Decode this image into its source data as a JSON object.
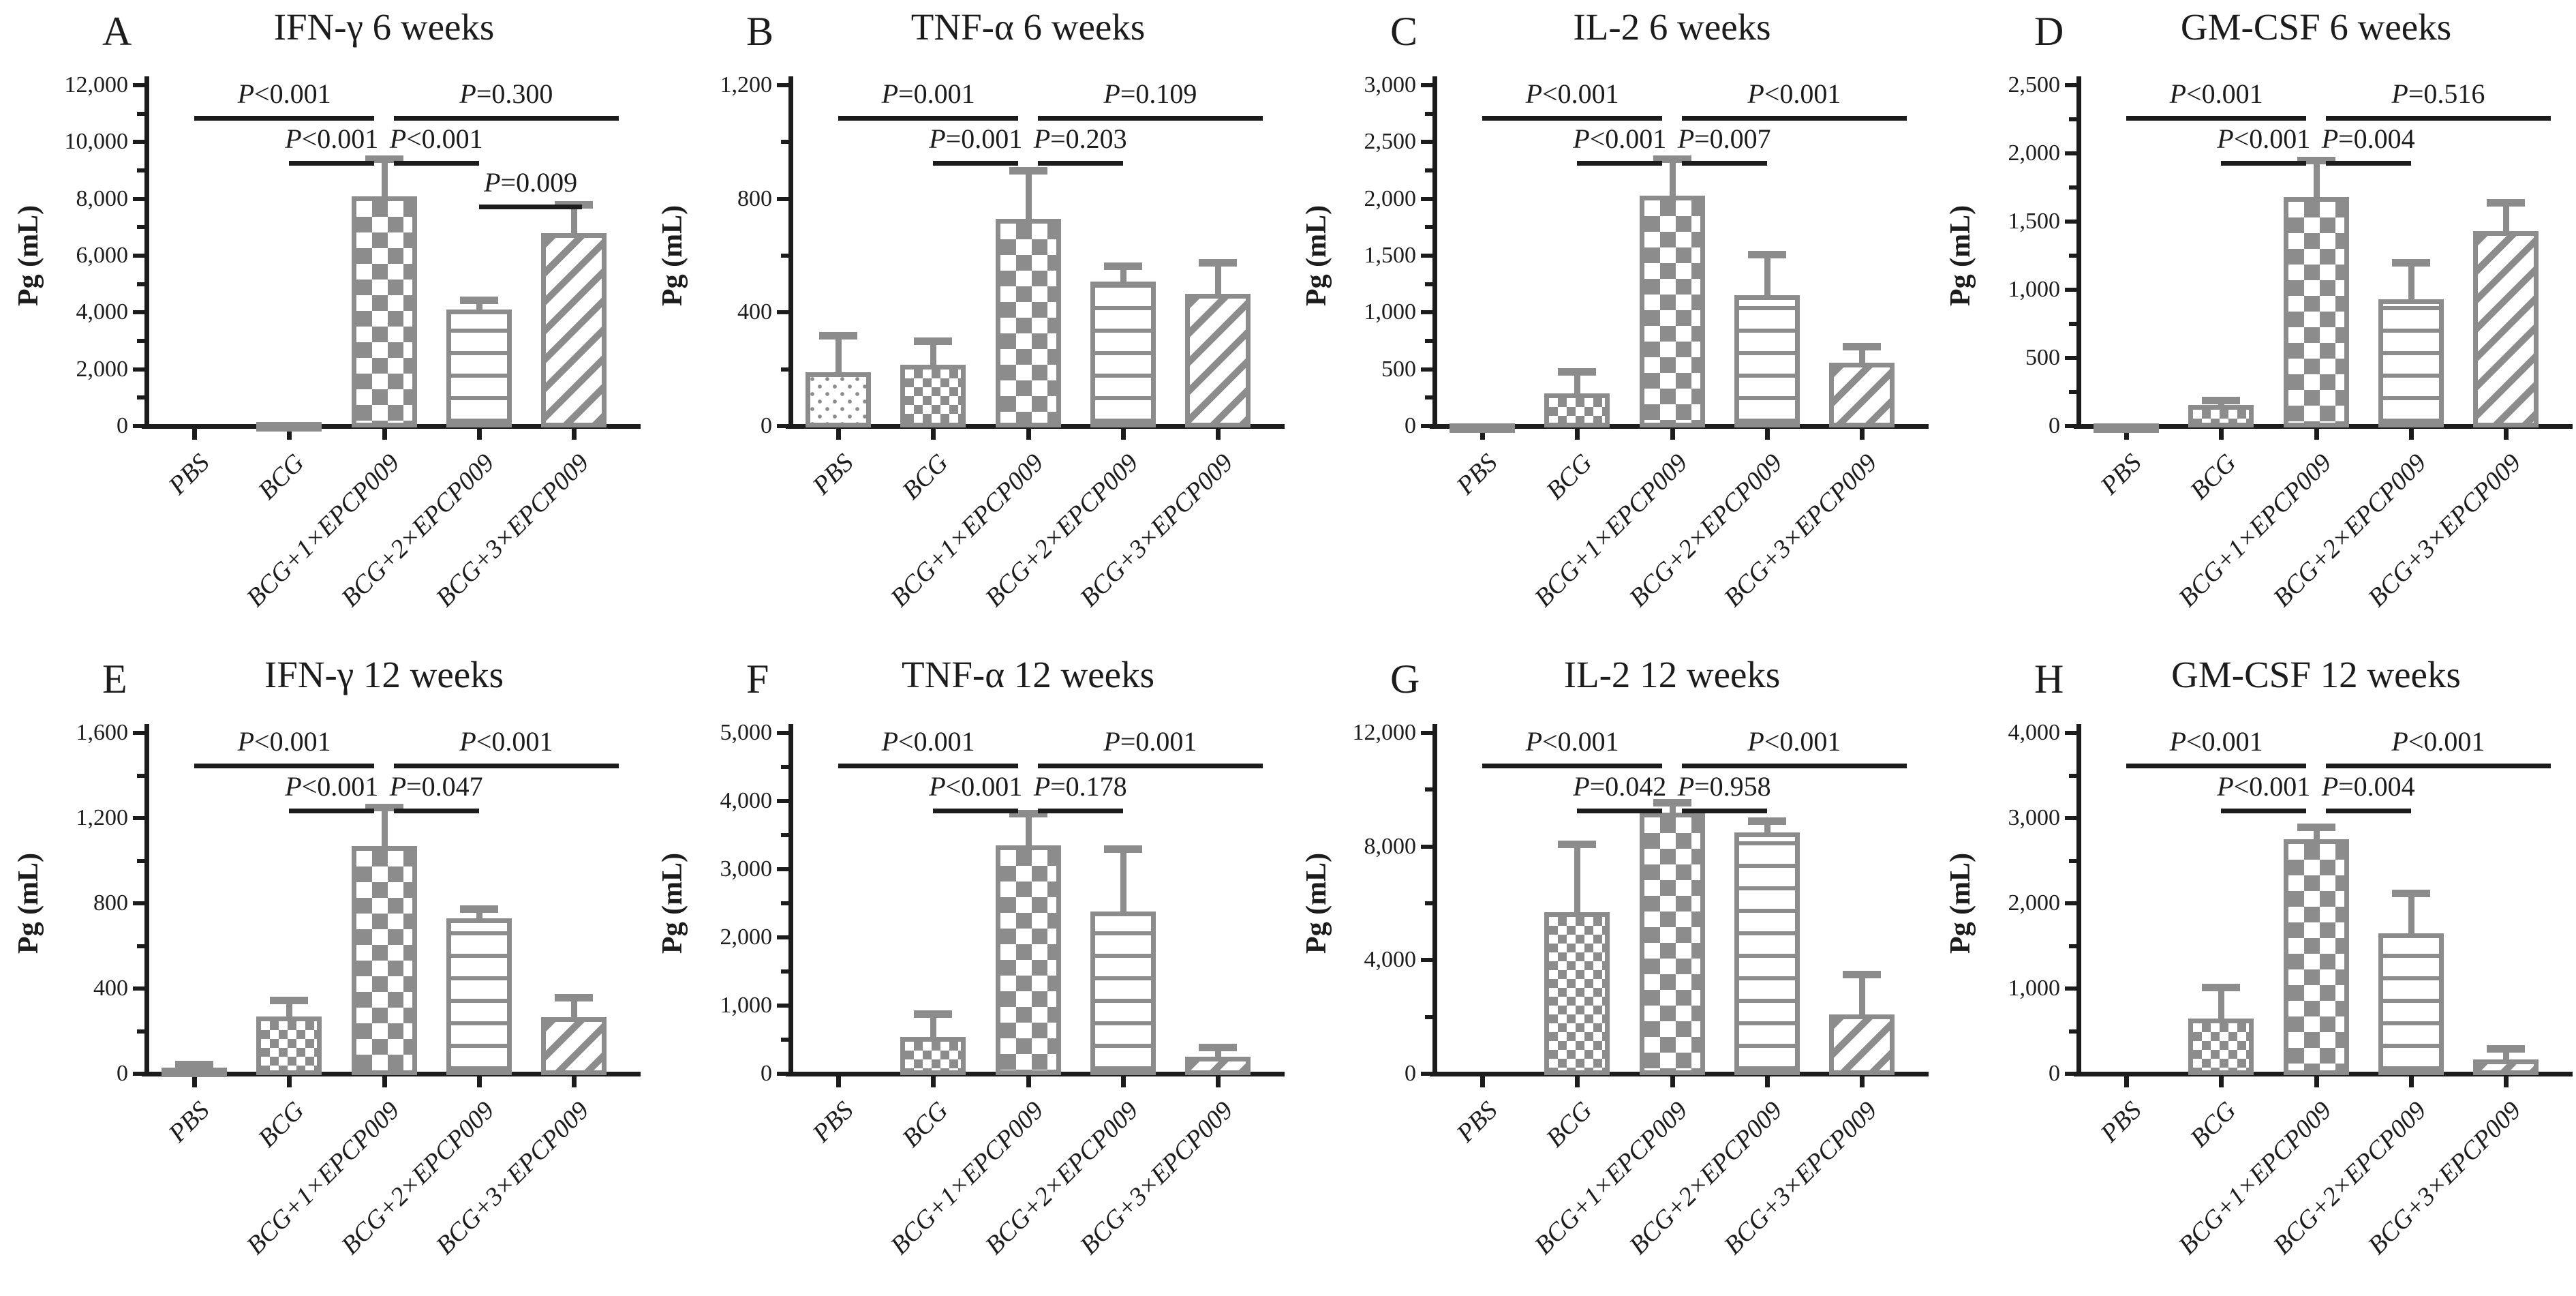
{
  "figure": {
    "y_axis_label": "Pg (mL)",
    "categories": [
      "PBS",
      "BCG",
      "BCG+1×EPCP009",
      "BCG+2×EPCP009",
      "BCG+3×EPCP009"
    ],
    "bar_patterns": [
      "dots",
      "small-checkerboard",
      "large-checkerboard",
      "horizontal-lines",
      "diagonal-stripes"
    ],
    "colors": {
      "bar_gray": "#8c8c8c",
      "axis_and_text": "#1c1c1c",
      "background": "#ffffff"
    }
  },
  "chart_data": [
    {
      "panel": "A",
      "type": "bar",
      "title": "IFN-γ 6 weeks",
      "ylabel": "Pg (mL)",
      "categories": [
        "PBS",
        "BCG",
        "BCG+1×EPCP009",
        "BCG+2×EPCP009",
        "BCG+3×EPCP009"
      ],
      "values": [
        0,
        150,
        8100,
        4100,
        6800
      ],
      "errors_upper": [
        null,
        null,
        9400,
        4450,
        7800
      ],
      "ylim": [
        0,
        12000
      ],
      "ystep": 2000,
      "ytick_labels": [
        "0",
        "2,000",
        "4,000",
        "6,000",
        "8,000",
        "10,000",
        "12,000"
      ],
      "significance": [
        {
          "label": "P<0.001",
          "row": 1,
          "from": 0,
          "to": 2
        },
        {
          "label": "P=0.300",
          "row": 1,
          "from": 2,
          "to": 4
        },
        {
          "label": "P<0.001",
          "row": 2,
          "from": 1,
          "to": 2
        },
        {
          "label": "P<0.001",
          "row": 2,
          "from": 2,
          "to": 3
        },
        {
          "label": "P=0.009",
          "row": 3,
          "from": 3,
          "to": 4
        }
      ]
    },
    {
      "panel": "B",
      "type": "bar",
      "title": "TNF-α 6 weeks",
      "ylabel": "Pg (mL)",
      "categories": [
        "PBS",
        "BCG",
        "BCG+1×EPCP009",
        "BCG+2×EPCP009",
        "BCG+3×EPCP009"
      ],
      "values": [
        190,
        215,
        730,
        510,
        465
      ],
      "errors_upper": [
        320,
        300,
        900,
        565,
        575
      ],
      "ylim": [
        0,
        1200
      ],
      "ystep": 400,
      "ytick_labels": [
        "0",
        "400",
        "800",
        "1,200"
      ],
      "significance": [
        {
          "label": "P=0.001",
          "row": 1,
          "from": 0,
          "to": 2
        },
        {
          "label": "P=0.109",
          "row": 1,
          "from": 2,
          "to": 4
        },
        {
          "label": "P=0.001",
          "row": 2,
          "from": 1,
          "to": 2
        },
        {
          "label": "P=0.203",
          "row": 2,
          "from": 2,
          "to": 3
        }
      ]
    },
    {
      "panel": "C",
      "type": "bar",
      "title": "IL-2 6 weeks",
      "ylabel": "Pg (mL)",
      "categories": [
        "PBS",
        "BCG",
        "BCG+1×EPCP009",
        "BCG+2×EPCP009",
        "BCG+3×EPCP009"
      ],
      "values": [
        25,
        290,
        2030,
        1150,
        560
      ],
      "errors_upper": [
        null,
        480,
        2350,
        1510,
        700
      ],
      "ylim": [
        0,
        3000
      ],
      "ystep": 500,
      "ytick_labels": [
        "0",
        "500",
        "1,000",
        "1,500",
        "2,000",
        "2,500",
        "3,000"
      ],
      "significance": [
        {
          "label": "P<0.001",
          "row": 1,
          "from": 0,
          "to": 2
        },
        {
          "label": "P<0.001",
          "row": 1,
          "from": 2,
          "to": 4
        },
        {
          "label": "P<0.001",
          "row": 2,
          "from": 1,
          "to": 2
        },
        {
          "label": "P=0.007",
          "row": 2,
          "from": 2,
          "to": 3
        }
      ]
    },
    {
      "panel": "D",
      "type": "bar",
      "title": "GM-CSF 6 weeks",
      "ylabel": "Pg (mL)",
      "categories": [
        "PBS",
        "BCG",
        "BCG+1×EPCP009",
        "BCG+2×EPCP009",
        "BCG+3×EPCP009"
      ],
      "values": [
        18,
        155,
        1680,
        930,
        1430
      ],
      "errors_upper": [
        null,
        190,
        1950,
        1200,
        1640
      ],
      "ylim": [
        0,
        2500
      ],
      "ystep": 500,
      "ytick_labels": [
        "0",
        "500",
        "1,000",
        "1,500",
        "2,000",
        "2,500"
      ],
      "significance": [
        {
          "label": "P<0.001",
          "row": 1,
          "from": 0,
          "to": 2
        },
        {
          "label": "P=0.516",
          "row": 1,
          "from": 2,
          "to": 4
        },
        {
          "label": "P<0.001",
          "row": 2,
          "from": 1,
          "to": 2
        },
        {
          "label": "P=0.004",
          "row": 2,
          "from": 2,
          "to": 3
        }
      ]
    },
    {
      "panel": "E",
      "type": "bar",
      "title": "IFN-γ 12 weeks",
      "ylabel": "Pg (mL)",
      "categories": [
        "PBS",
        "BCG",
        "BCG+1×EPCP009",
        "BCG+2×EPCP009",
        "BCG+3×EPCP009"
      ],
      "values": [
        28,
        270,
        1070,
        730,
        265
      ],
      "errors_upper": [
        45,
        345,
        1250,
        775,
        360
      ],
      "ylim": [
        0,
        1600
      ],
      "ystep": 400,
      "ytick_labels": [
        "0",
        "400",
        "800",
        "1,200",
        "1,600"
      ],
      "significance": [
        {
          "label": "P<0.001",
          "row": 1,
          "from": 0,
          "to": 2
        },
        {
          "label": "P<0.001",
          "row": 1,
          "from": 2,
          "to": 4
        },
        {
          "label": "P<0.001",
          "row": 2,
          "from": 1,
          "to": 2
        },
        {
          "label": "P=0.047",
          "row": 2,
          "from": 2,
          "to": 3
        }
      ]
    },
    {
      "panel": "F",
      "type": "bar",
      "title": "TNF-α 12 weeks",
      "ylabel": "Pg (mL)",
      "categories": [
        "PBS",
        "BCG",
        "BCG+1×EPCP009",
        "BCG+2×EPCP009",
        "BCG+3×EPCP009"
      ],
      "values": [
        0,
        540,
        3350,
        2380,
        250
      ],
      "errors_upper": [
        null,
        880,
        3820,
        3300,
        390
      ],
      "ylim": [
        0,
        5000
      ],
      "ystep": 1000,
      "ytick_labels": [
        "0",
        "1,000",
        "2,000",
        "3,000",
        "4,000",
        "5,000"
      ],
      "significance": [
        {
          "label": "P<0.001",
          "row": 1,
          "from": 0,
          "to": 2
        },
        {
          "label": "P=0.001",
          "row": 1,
          "from": 2,
          "to": 4
        },
        {
          "label": "P<0.001",
          "row": 2,
          "from": 1,
          "to": 2
        },
        {
          "label": "P=0.178",
          "row": 2,
          "from": 2,
          "to": 3
        }
      ]
    },
    {
      "panel": "G",
      "type": "bar",
      "title": "IL-2 12 weeks",
      "ylabel": "Pg (mL)",
      "categories": [
        "PBS",
        "BCG",
        "BCG+1×EPCP009",
        "BCG+2×EPCP009",
        "BCG+3×EPCP009"
      ],
      "values": [
        0,
        5700,
        9200,
        8500,
        2100
      ],
      "errors_upper": [
        null,
        8100,
        9550,
        8900,
        3500
      ],
      "ylim": [
        0,
        12000
      ],
      "ystep": 4000,
      "ytick_labels": [
        "0",
        "4,000",
        "8,000",
        "12,000"
      ],
      "significance": [
        {
          "label": "P<0.001",
          "row": 1,
          "from": 0,
          "to": 2
        },
        {
          "label": "P<0.001",
          "row": 1,
          "from": 2,
          "to": 4
        },
        {
          "label": "P=0.042",
          "row": 2,
          "from": 1,
          "to": 2
        },
        {
          "label": "P=0.958",
          "row": 2,
          "from": 2,
          "to": 3
        }
      ]
    },
    {
      "panel": "H",
      "type": "bar",
      "title": "GM-CSF 12 weeks",
      "ylabel": "Pg (mL)",
      "categories": [
        "PBS",
        "BCG",
        "BCG+1×EPCP009",
        "BCG+2×EPCP009",
        "BCG+3×EPCP009"
      ],
      "values": [
        0,
        650,
        2750,
        1650,
        170
      ],
      "errors_upper": [
        null,
        1020,
        2900,
        2120,
        300
      ],
      "ylim": [
        0,
        4000
      ],
      "ystep": 1000,
      "ytick_labels": [
        "0",
        "1,000",
        "2,000",
        "3,000",
        "4,000"
      ],
      "significance": [
        {
          "label": "P<0.001",
          "row": 1,
          "from": 0,
          "to": 2
        },
        {
          "label": "P<0.001",
          "row": 1,
          "from": 2,
          "to": 4
        },
        {
          "label": "P<0.001",
          "row": 2,
          "from": 1,
          "to": 2
        },
        {
          "label": "P=0.004",
          "row": 2,
          "from": 2,
          "to": 3
        }
      ]
    }
  ]
}
